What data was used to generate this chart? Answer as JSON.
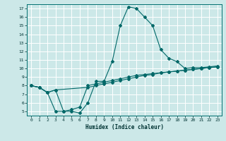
{
  "xlabel": "Humidex (Indice chaleur)",
  "bg_color": "#cce8e8",
  "grid_color": "#ffffff",
  "line_color": "#006868",
  "xlim": [
    -0.5,
    23.5
  ],
  "ylim": [
    4.5,
    17.5
  ],
  "xticks": [
    0,
    1,
    2,
    3,
    4,
    5,
    6,
    7,
    8,
    9,
    10,
    11,
    12,
    13,
    14,
    15,
    16,
    17,
    18,
    19,
    20,
    21,
    22,
    23
  ],
  "yticks": [
    5,
    6,
    7,
    8,
    9,
    10,
    11,
    12,
    13,
    14,
    15,
    16,
    17
  ],
  "line1_x": [
    0,
    1,
    2,
    3,
    4,
    5,
    6,
    7,
    8,
    9,
    10,
    11,
    12,
    13,
    14,
    15,
    16,
    17,
    18,
    19,
    20,
    21,
    22,
    23
  ],
  "line1_y": [
    8.0,
    7.8,
    7.2,
    7.5,
    5.0,
    5.0,
    4.8,
    6.0,
    8.5,
    8.5,
    10.8,
    15.0,
    17.2,
    17.0,
    16.0,
    15.0,
    12.2,
    11.2,
    10.8,
    10.0,
    10.1,
    10.1,
    10.2,
    10.3
  ],
  "line2_x": [
    0,
    1,
    2,
    3,
    4,
    5,
    6,
    7,
    8,
    9,
    10,
    11,
    12,
    13,
    14,
    15,
    16,
    17,
    18,
    19,
    20,
    21,
    22,
    23
  ],
  "line2_y": [
    8.0,
    7.8,
    7.2,
    5.0,
    5.0,
    5.2,
    5.5,
    8.0,
    8.2,
    8.4,
    8.6,
    8.8,
    9.0,
    9.2,
    9.3,
    9.4,
    9.5,
    9.6,
    9.7,
    9.8,
    9.9,
    10.0,
    10.1,
    10.2
  ],
  "line3_x": [
    0,
    1,
    2,
    3,
    7,
    8,
    9,
    10,
    11,
    12,
    13,
    14,
    15,
    16,
    17,
    18,
    19,
    20,
    21,
    22,
    23
  ],
  "line3_y": [
    8.0,
    7.8,
    7.2,
    7.5,
    7.8,
    8.0,
    8.2,
    8.4,
    8.6,
    8.8,
    9.0,
    9.2,
    9.3,
    9.5,
    9.6,
    9.7,
    9.8,
    9.9,
    10.0,
    10.1,
    10.2
  ]
}
